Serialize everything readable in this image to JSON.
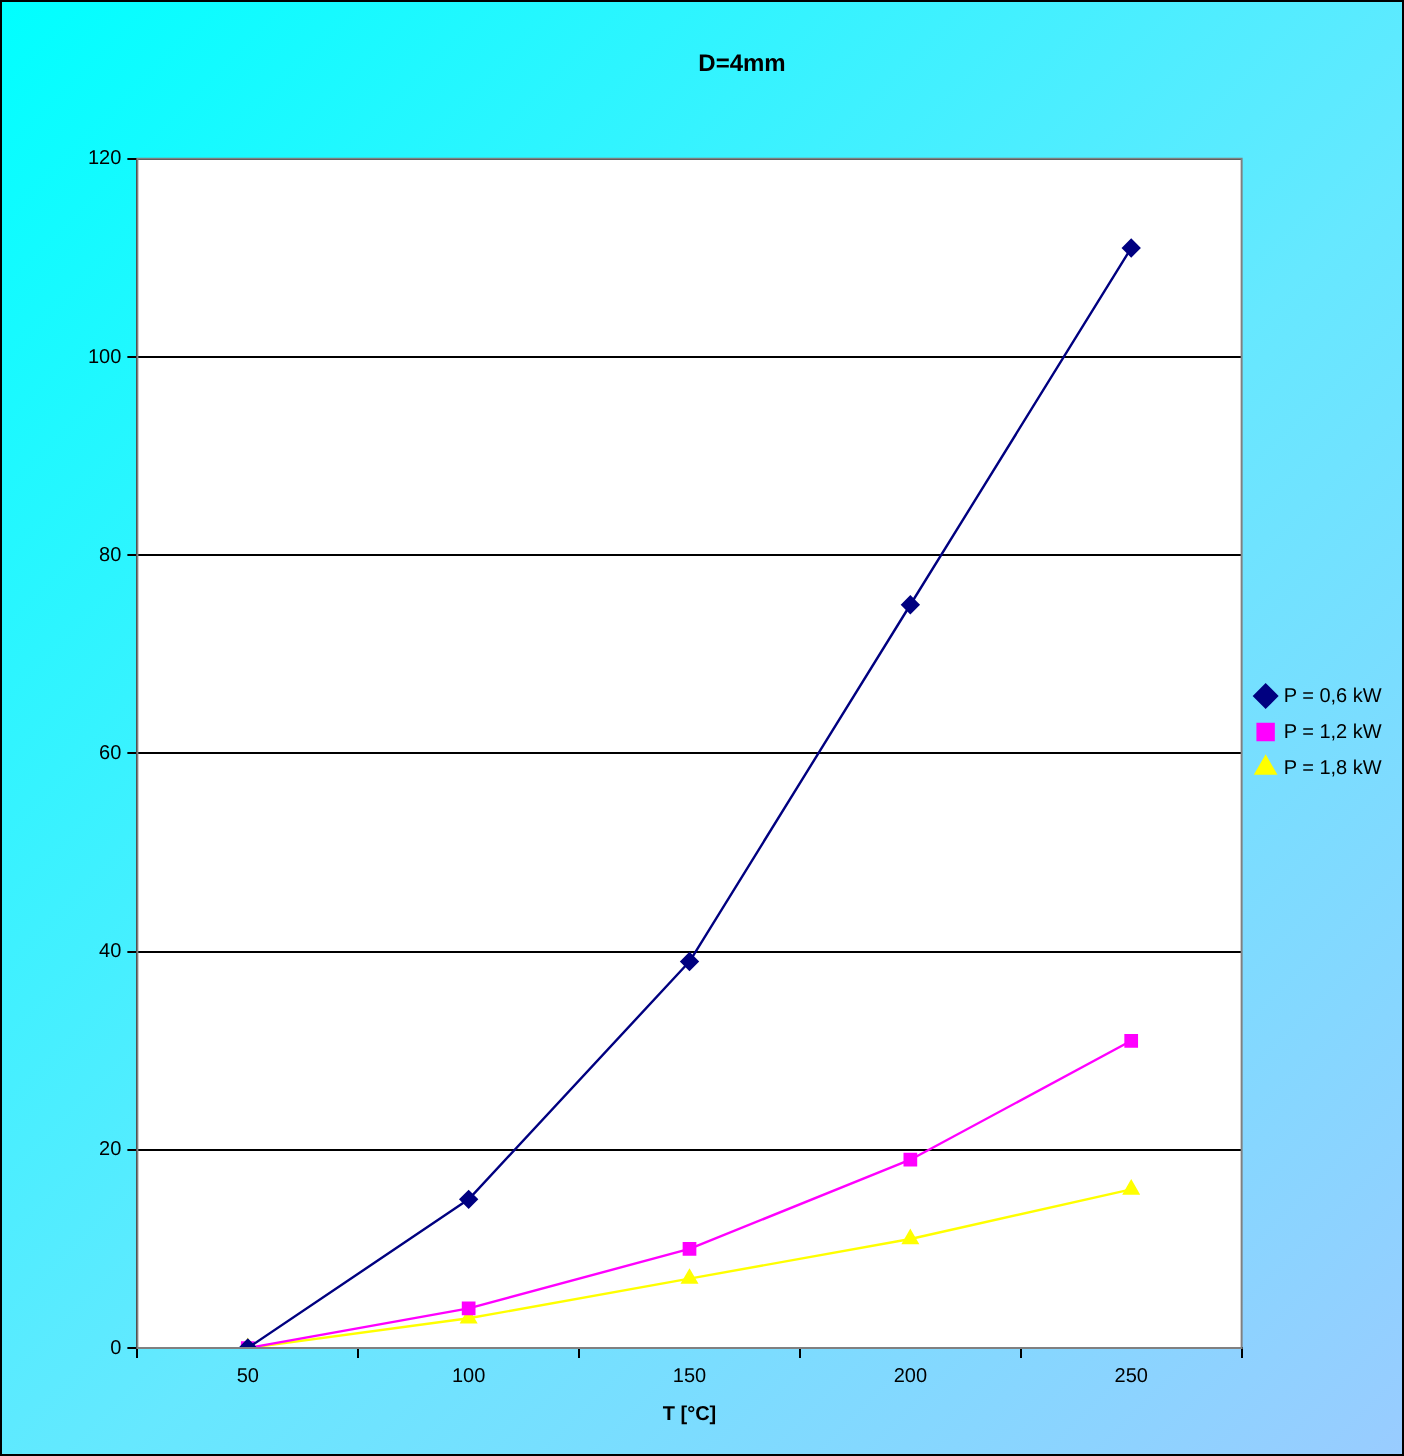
{
  "chart_data": {
    "type": "line",
    "title": "D=4mm",
    "xlabel": "T [°C]",
    "categories": [
      "50",
      "100",
      "150",
      "200",
      "250"
    ],
    "series": [
      {
        "name": "P = 0,6 kW",
        "color": "#000080",
        "marker": "diamond",
        "values": [
          0,
          15,
          39,
          75,
          111
        ]
      },
      {
        "name": "P = 1,2 kW",
        "color": "#ff00ff",
        "marker": "square",
        "values": [
          0,
          4,
          10,
          19,
          31
        ]
      },
      {
        "name": "P = 1,8 kW",
        "color": "#ffff00",
        "marker": "triangle",
        "values": [
          0,
          3,
          7,
          11,
          16
        ]
      }
    ],
    "ylim": [
      0,
      120
    ],
    "yticks": [
      0,
      20,
      40,
      60,
      80,
      100,
      120
    ],
    "grid": "y",
    "legend": "right",
    "line_style": "solid"
  }
}
